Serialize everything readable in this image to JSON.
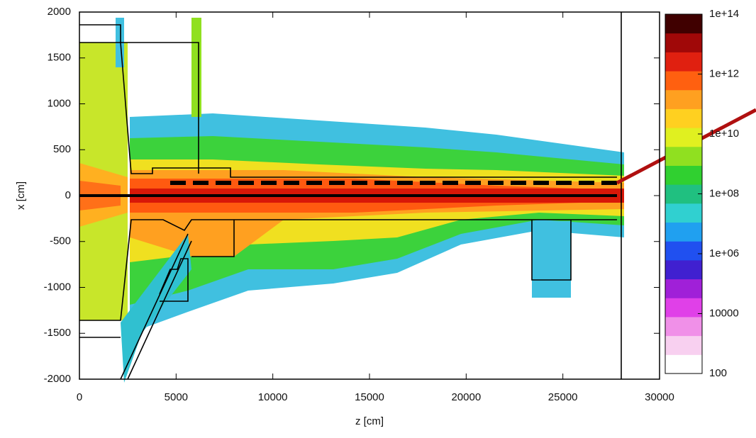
{
  "chart_data": {
    "type": "heatmap",
    "x_label": "z [cm]",
    "y_label": "x [cm]",
    "xlim": [
      0,
      30000
    ],
    "xticks": [
      0,
      5000,
      10000,
      15000,
      20000,
      25000,
      30000
    ],
    "ylim": [
      -2000,
      2000
    ],
    "yticks": [
      -2000,
      -1500,
      -1000,
      -500,
      0,
      500,
      1000,
      1500,
      2000
    ],
    "colorbar": {
      "zlim": [
        100,
        100000000000000.0
      ],
      "log": true,
      "ticks": [
        100,
        10000,
        {
          "value": 1000000.0,
          "label": "1e+06"
        },
        {
          "value": 100000000.0,
          "label": "1e+08"
        },
        {
          "value": 10000000000.0,
          "label": "1e+10"
        },
        {
          "value": 1000000000000.0,
          "label": "1e+12"
        },
        {
          "value": 100000000000000.0,
          "label": "1e+14"
        }
      ],
      "colors": [
        "#ffffff",
        "#f8d0f0",
        "#f090e8",
        "#e040e8",
        "#a020d8",
        "#4020d0",
        "#2050f0",
        "#20a0f0",
        "#30d0d0",
        "#20c080",
        "#30d030",
        "#90e020",
        "#e0f020",
        "#ffd020",
        "#ffa020",
        "#ff6010",
        "#e02010",
        "#a00808",
        "#400000"
      ]
    },
    "grid": false
  }
}
